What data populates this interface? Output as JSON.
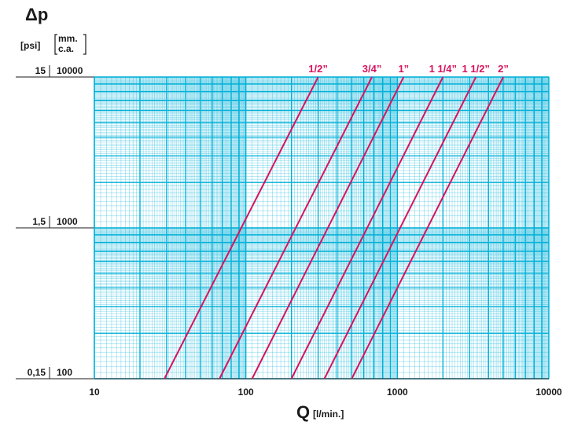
{
  "chart_data": {
    "type": "line",
    "title": "Δp",
    "xlabel": "Q",
    "xlabel_unit": "[l/min.]",
    "y_unit_psi": "[psi]",
    "y_unit_mm_line1": "mm.",
    "y_unit_mm_line2": "c.a.",
    "x_scale": "log",
    "y_scale": "log",
    "xlim": [
      10,
      10000
    ],
    "ylim": [
      100,
      10000
    ],
    "grid": true,
    "x_ticks": [
      "10",
      "100",
      "1000",
      "10000"
    ],
    "y_ticks_psi": [
      "15",
      "1,5",
      "0,15"
    ],
    "y_ticks_mm": [
      "10000",
      "1000",
      "100"
    ],
    "colors": {
      "grid": "#00b0d8",
      "series": "#d6145f",
      "text": "#1a1a1a"
    },
    "series": [
      {
        "name": "1/2”",
        "x": [
          29,
          300
        ],
        "y": [
          100,
          10000
        ]
      },
      {
        "name": "3/4”",
        "x": [
          67,
          680
        ],
        "y": [
          100,
          10000
        ]
      },
      {
        "name": "1”",
        "x": [
          110,
          1100
        ],
        "y": [
          100,
          10000
        ]
      },
      {
        "name": "1 1/4”",
        "x": [
          200,
          2000
        ],
        "y": [
          100,
          10000
        ]
      },
      {
        "name": "1 1/2”",
        "x": [
          330,
          3300
        ],
        "y": [
          100,
          10000
        ]
      },
      {
        "name": "2”",
        "x": [
          500,
          5000
        ],
        "y": [
          100,
          10000
        ]
      }
    ]
  }
}
